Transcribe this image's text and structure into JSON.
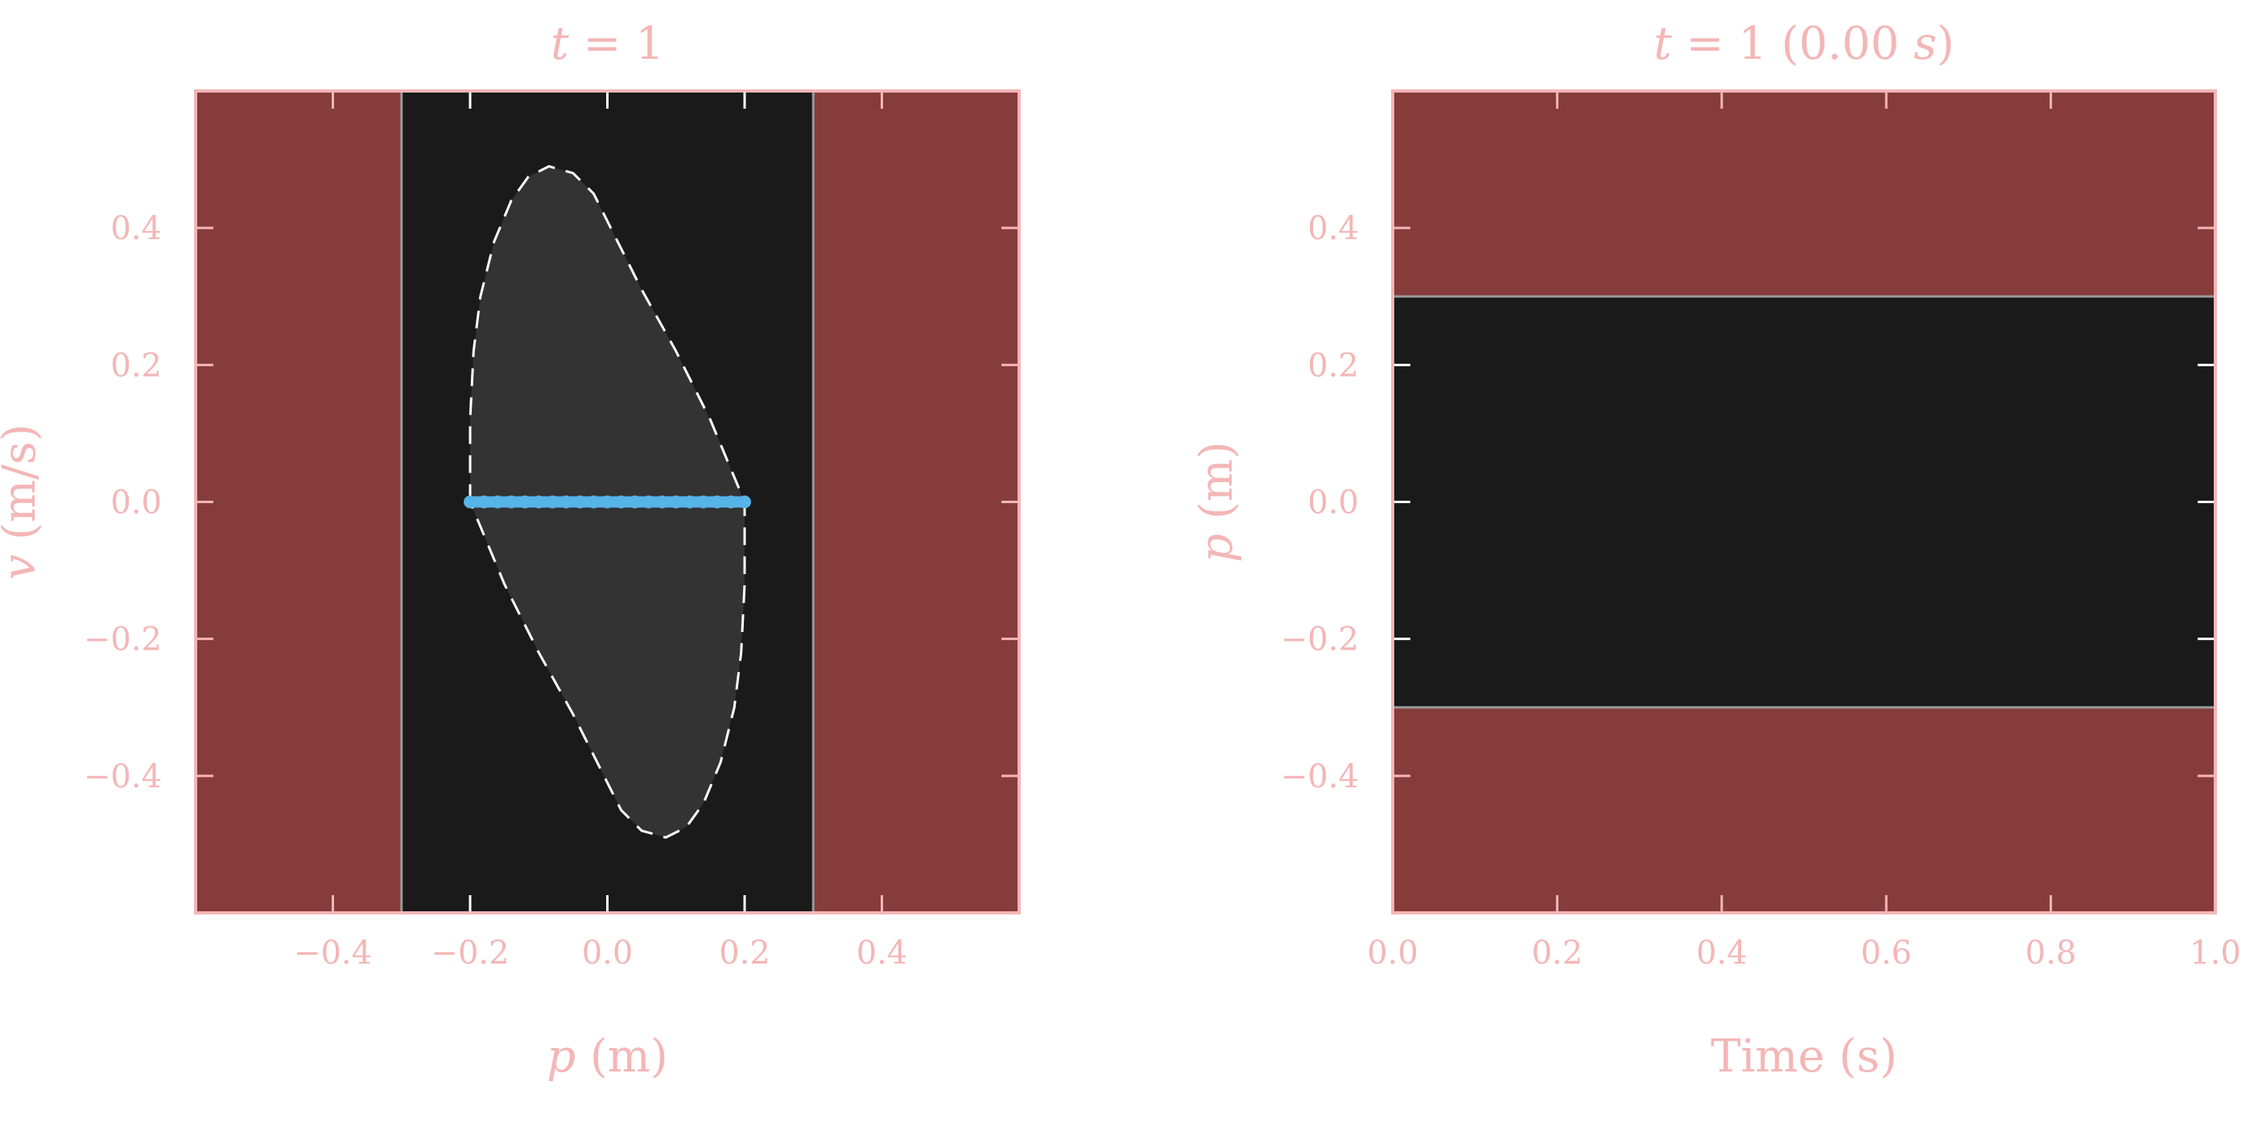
{
  "theme": {
    "unsafe_fill": "#873c3c",
    "safe_fill": "#1a1a1a",
    "reach_fill": "#333333",
    "spine": "#f4b6b6",
    "text": "#f4b6b6",
    "tick_inner": "#ffffff",
    "boundary": "#999999",
    "reach_outline": "#ffffff",
    "state_line": "#56b4e9"
  },
  "chart_data": [
    {
      "type": "scatter",
      "title": {
        "var": "t",
        "eq": " = 1",
        "suffix": ""
      },
      "xlabel": {
        "var": "p",
        "unit": " (m)"
      },
      "ylabel": {
        "var": "v",
        "unit": " (m/s)"
      },
      "xlim": [
        -0.6,
        0.6
      ],
      "ylim": [
        -0.6,
        0.6
      ],
      "xticks": [
        -0.4,
        -0.2,
        0.0,
        0.2,
        0.4
      ],
      "xtick_labels": [
        "−0.4",
        "−0.2",
        "0.0",
        "0.2",
        "0.4"
      ],
      "yticks": [
        -0.4,
        -0.2,
        0.0,
        0.2,
        0.4
      ],
      "ytick_labels": [
        "−0.4",
        "−0.2",
        "0.0",
        "0.2",
        "0.4"
      ],
      "grid": false,
      "legend": "none",
      "safe_region": {
        "axis": "x",
        "range": [
          -0.3,
          0.3
        ]
      },
      "reachable_set_boundary": [
        [
          -0.2,
          0.0
        ],
        [
          -0.2,
          0.12
        ],
        [
          -0.195,
          0.22
        ],
        [
          -0.185,
          0.3
        ],
        [
          -0.165,
          0.38
        ],
        [
          -0.14,
          0.44
        ],
        [
          -0.115,
          0.475
        ],
        [
          -0.085,
          0.49
        ],
        [
          -0.05,
          0.48
        ],
        [
          -0.02,
          0.45
        ],
        [
          0.01,
          0.39
        ],
        [
          0.05,
          0.31
        ],
        [
          0.1,
          0.22
        ],
        [
          0.15,
          0.12
        ],
        [
          0.2,
          0.0
        ],
        [
          0.2,
          -0.12
        ],
        [
          0.195,
          -0.22
        ],
        [
          0.185,
          -0.3
        ],
        [
          0.165,
          -0.38
        ],
        [
          0.14,
          -0.44
        ],
        [
          0.115,
          -0.475
        ],
        [
          0.085,
          -0.49
        ],
        [
          0.05,
          -0.48
        ],
        [
          0.02,
          -0.45
        ],
        [
          -0.01,
          -0.39
        ],
        [
          -0.05,
          -0.31
        ],
        [
          -0.1,
          -0.22
        ],
        [
          -0.15,
          -0.12
        ],
        [
          -0.2,
          0.0
        ]
      ],
      "initial_states": {
        "v": 0.0,
        "p": [
          -0.2,
          -0.18,
          -0.16,
          -0.14,
          -0.12,
          -0.1,
          -0.08,
          -0.06,
          -0.04,
          -0.02,
          0.0,
          0.02,
          0.04,
          0.06,
          0.08,
          0.1,
          0.12,
          0.14,
          0.16,
          0.18,
          0.2
        ]
      }
    },
    {
      "type": "line",
      "title": {
        "var": "t",
        "eq": " = 1 (0.00 ",
        "var2": "s",
        "suffix": ")"
      },
      "xlabel": {
        "var": "",
        "unit": "Time (s)"
      },
      "ylabel": {
        "var": "p",
        "unit": " (m)"
      },
      "xlim": [
        0.0,
        1.0
      ],
      "ylim": [
        -0.6,
        0.6
      ],
      "xticks": [
        0.0,
        0.2,
        0.4,
        0.6,
        0.8,
        1.0
      ],
      "xtick_labels": [
        "0.0",
        "0.2",
        "0.4",
        "0.6",
        "0.8",
        "1.0"
      ],
      "yticks": [
        -0.4,
        -0.2,
        0.0,
        0.2,
        0.4
      ],
      "ytick_labels": [
        "−0.4",
        "−0.2",
        "0.0",
        "0.2",
        "0.4"
      ],
      "grid": false,
      "legend": "none",
      "safe_region": {
        "axis": "y",
        "range": [
          -0.3,
          0.3
        ]
      },
      "series": []
    }
  ]
}
